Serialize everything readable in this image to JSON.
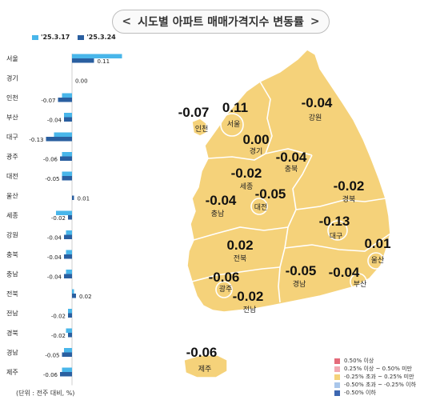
{
  "header": {
    "title": "시도별 아파트 매매가격지수 변동률"
  },
  "legend": {
    "series_prev": "'25.3.17",
    "series_curr": "'25.3.24",
    "color_prev": "#49b6ea",
    "color_curr": "#2a5fa0"
  },
  "chart_data": {
    "type": "bar",
    "orientation": "horizontal",
    "categories": [
      "서울",
      "경기",
      "인천",
      "부산",
      "대구",
      "광주",
      "대전",
      "울산",
      "세종",
      "강원",
      "충북",
      "충남",
      "전북",
      "전남",
      "경북",
      "경남",
      "제주"
    ],
    "series": [
      {
        "name": "'25.3.17",
        "values": [
          0.25,
          0.0,
          -0.05,
          -0.04,
          -0.09,
          -0.05,
          -0.05,
          0.0,
          -0.08,
          -0.03,
          -0.03,
          -0.03,
          0.01,
          -0.02,
          -0.03,
          -0.04,
          -0.05
        ]
      },
      {
        "name": "'25.3.24",
        "values": [
          0.11,
          0.0,
          -0.07,
          -0.04,
          -0.13,
          -0.06,
          -0.05,
          0.01,
          -0.02,
          -0.04,
          -0.04,
          -0.04,
          0.02,
          -0.02,
          -0.02,
          -0.05,
          -0.06
        ]
      }
    ],
    "value_labels": [
      "0.11",
      "0.00",
      "-0.07",
      "-0.04",
      "-0.13",
      "-0.06",
      "-0.05",
      "0.01",
      "-0.02",
      "-0.04",
      "-0.04",
      "-0.04",
      "0.02",
      "-0.02",
      "-0.02",
      "-0.05",
      "-0.06"
    ]
  },
  "unit_note": "(단위 : 전주 대비, %)",
  "map": {
    "regions": [
      {
        "id": "seoul",
        "name": "서울",
        "value": "0.11"
      },
      {
        "id": "incheon",
        "name": "인천",
        "value": "-0.07"
      },
      {
        "id": "gyeonggi",
        "name": "경기",
        "value": "0.00"
      },
      {
        "id": "gangwon",
        "name": "강원",
        "value": "-0.04"
      },
      {
        "id": "chungbuk",
        "name": "충북",
        "value": "-0.04"
      },
      {
        "id": "sejong",
        "name": "세종",
        "value": "-0.02"
      },
      {
        "id": "daejeon",
        "name": "대전",
        "value": "-0.05"
      },
      {
        "id": "chungnam",
        "name": "충남",
        "value": "-0.04"
      },
      {
        "id": "gyeongbuk",
        "name": "경북",
        "value": "-0.02"
      },
      {
        "id": "daegu",
        "name": "대구",
        "value": "-0.13"
      },
      {
        "id": "ulsan",
        "name": "울산",
        "value": "0.01"
      },
      {
        "id": "jeonbuk",
        "name": "전북",
        "value": "0.02"
      },
      {
        "id": "gwangju",
        "name": "광주",
        "value": "-0.06"
      },
      {
        "id": "jeonnam",
        "name": "전남",
        "value": "-0.02"
      },
      {
        "id": "gyeongnam",
        "name": "경남",
        "value": "-0.05"
      },
      {
        "id": "busan",
        "name": "부산",
        "value": "-0.04"
      },
      {
        "id": "jeju",
        "name": "제주",
        "value": "-0.06"
      }
    ],
    "fill_color": "#f5d27a",
    "legend": [
      {
        "label": "0.50% 이상",
        "color": "#e46b7a"
      },
      {
        "label": "0.25% 이상 ~ 0.50% 미만",
        "color": "#f2a9b2"
      },
      {
        "label": "-0.25% 초과 ~ 0.25% 미만",
        "color": "#f5d27a"
      },
      {
        "label": "-0.50% 초과 ~ -0.25% 이하",
        "color": "#a9c6ea"
      },
      {
        "label": "-0.50% 이하",
        "color": "#3d67b1"
      }
    ]
  }
}
